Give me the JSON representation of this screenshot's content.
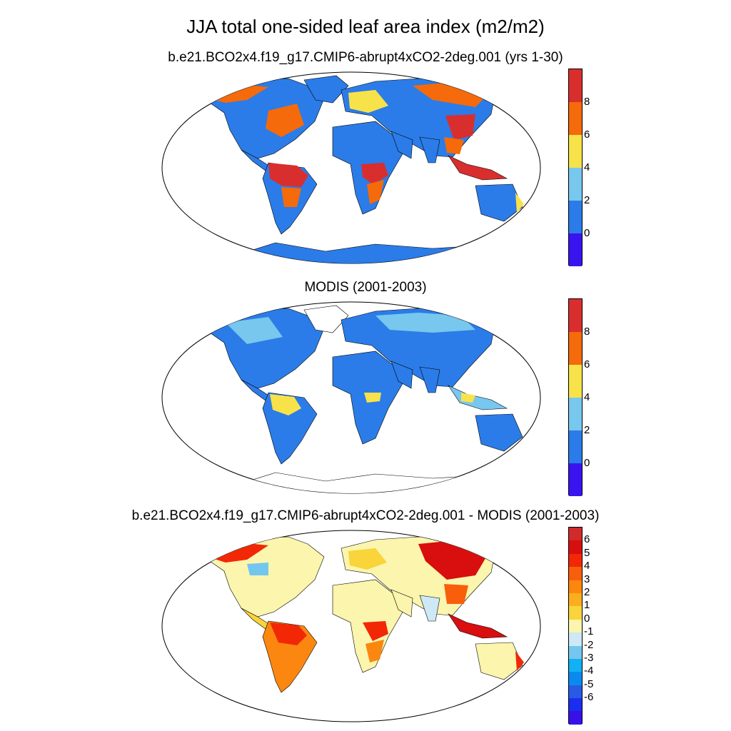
{
  "title": "JJA total one-sided leaf area index (m2/m2)",
  "panels": [
    {
      "title": "b.e21.BCO2x4.f19_g17.CMIP6-abrupt4xCO2-2deg.001 (yrs 1-30)",
      "colorbar": {
        "colors": [
          "#3a14f0",
          "#2b7ce8",
          "#77c7ee",
          "#f8e24a",
          "#f56a0a",
          "#d92e2e"
        ],
        "ticks": [
          "0",
          "2",
          "4",
          "6",
          "8"
        ]
      }
    },
    {
      "title": "MODIS (2001-2003)",
      "colorbar": {
        "colors": [
          "#3a14f0",
          "#2b7ce8",
          "#77c7ee",
          "#f8e24a",
          "#f56a0a",
          "#d92e2e"
        ],
        "ticks": [
          "0",
          "2",
          "4",
          "6",
          "8"
        ]
      }
    },
    {
      "title": "b.e21.BCO2x4.f19_g17.CMIP6-abrupt4xCO2-2deg.001 - MODIS (2001-2003)",
      "colorbar": {
        "colors": [
          "#3a10e8",
          "#1a2ef2",
          "#2a5ae4",
          "#0a8aee",
          "#12b0f4",
          "#73c7ee",
          "#cde9f6",
          "#fbf5ad",
          "#f9d43a",
          "#fcae1e",
          "#fb8710",
          "#f95f0a",
          "#f22706",
          "#d90e0e",
          "#d02a2a"
        ],
        "ticks": [
          "6",
          "5",
          "4",
          "3",
          "2",
          "1",
          "0",
          "-1",
          "-2",
          "-3",
          "-4",
          "-5",
          "-6"
        ]
      }
    }
  ]
}
